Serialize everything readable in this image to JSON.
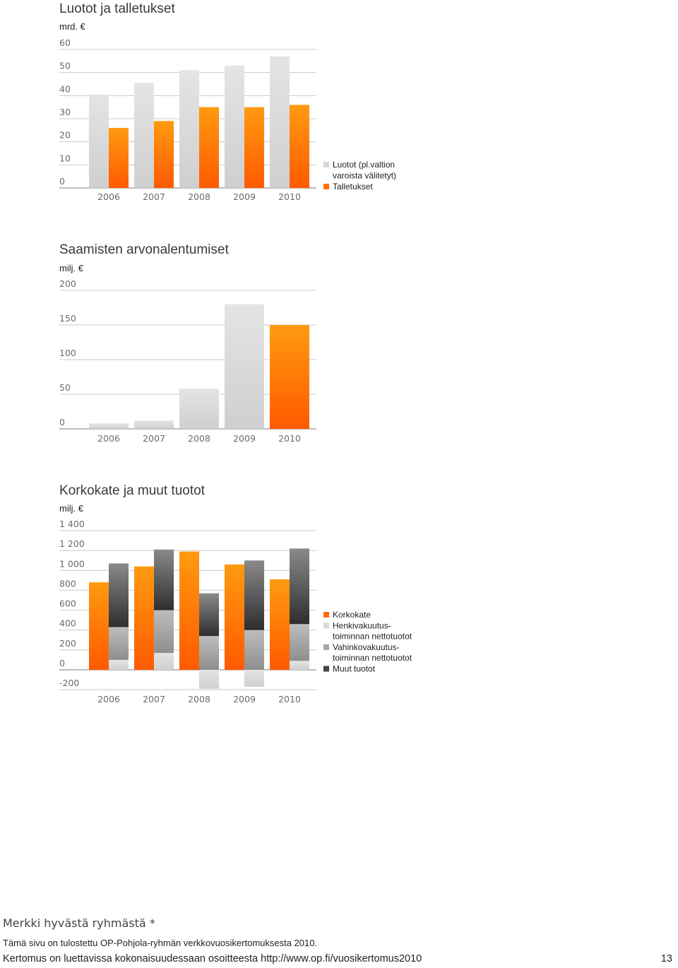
{
  "colors": {
    "orange": "#ff6e00",
    "light_gray": "#d8d8d8",
    "mid_gray": "#a6a6a6",
    "dark_gray": "#444444"
  },
  "chart_data": [
    {
      "type": "bar",
      "title": "Luotot ja talletukset",
      "unit": "mrd. €",
      "categories": [
        "2006",
        "2007",
        "2008",
        "2009",
        "2010"
      ],
      "yticks": [
        "0",
        "10",
        "20",
        "30",
        "40",
        "50",
        "60"
      ],
      "ylim": [
        0,
        60
      ],
      "series": [
        {
          "name": "Luotot (pl. valtion varoista välitetyt)",
          "values": [
            40.5,
            45.5,
            51,
            53,
            57
          ]
        },
        {
          "name": "Talletukset",
          "values": [
            26,
            29,
            35,
            35,
            36
          ]
        }
      ],
      "legend": {
        "items": [
          {
            "lines": [
              "Luotot (pl.valtion",
              "varoista välitetyt)"
            ],
            "color": "light_gray"
          },
          {
            "lines": [
              "Talletukset"
            ],
            "color": "orange"
          }
        ]
      }
    },
    {
      "type": "bar",
      "title": "Saamisten arvonalentumiset",
      "unit": "milj. €",
      "categories": [
        "2006",
        "2007",
        "2008",
        "2009",
        "2010"
      ],
      "yticks": [
        "0",
        "50",
        "100",
        "150",
        "200"
      ],
      "ylim": [
        0,
        200
      ],
      "values": [
        8,
        12,
        58,
        180,
        150
      ],
      "bar_colors": [
        "light_gray",
        "light_gray",
        "light_gray",
        "light_gray",
        "orange"
      ]
    },
    {
      "type": "bar",
      "title": "Korkokate ja muut tuotot",
      "unit": "milj. €",
      "categories": [
        "2006",
        "2007",
        "2008",
        "2009",
        "2010"
      ],
      "yticks": [
        "-200",
        "0",
        "200",
        "400",
        "600",
        "800",
        "1 000",
        "1 200",
        "1 400"
      ],
      "ylim": [
        -200,
        1400
      ],
      "series": [
        {
          "name": "Korkokate",
          "values": [
            880,
            1040,
            1190,
            1060,
            910
          ]
        },
        {
          "name": "Henkivakuutustoiminnan nettotuotot",
          "values": [
            100,
            170,
            -190,
            -170,
            90
          ]
        },
        {
          "name": "Vahinkovakuutustoiminnan nettotuotot",
          "values": [
            330,
            430,
            340,
            400,
            370
          ]
        },
        {
          "name": "Muut tuotot",
          "values": [
            640,
            610,
            430,
            700,
            760
          ]
        }
      ],
      "legend": {
        "items": [
          {
            "lines": [
              "Korkokate"
            ],
            "color": "orange"
          },
          {
            "lines": [
              "Henkivakuutus-",
              "toiminnan nettotuotot"
            ],
            "color": "light_gray"
          },
          {
            "lines": [
              "Vahinkovakuutus-",
              "toiminnan nettotuotot"
            ],
            "color": "mid_gray"
          },
          {
            "lines": [
              "Muut tuotot"
            ],
            "color": "dark_gray"
          }
        ]
      }
    }
  ],
  "footer": {
    "title": "Merkki hyvästä ryhmästä *",
    "line1": "Tämä sivu on tulostettu OP-Pohjola-ryhmän verkkovuosikertomuksesta 2010.",
    "line2": "Kertomus on luettavissa kokonaisuudessaan osoitteesta http://www.op.fi/vuosikertomus2010",
    "page": "13"
  }
}
